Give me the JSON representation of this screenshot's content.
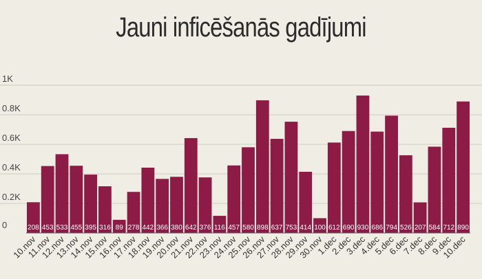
{
  "chart_data": {
    "type": "bar",
    "title": "Jauni inficēšanās gadījumi",
    "categories": [
      "10.nov",
      "11.nov",
      "12.nov",
      "13.nov",
      "14.nov",
      "15.nov",
      "16.nov",
      "17.nov",
      "18.nov",
      "19.nov",
      "20.nov",
      "21.nov",
      "22.nov",
      "23.nov",
      "24.nov",
      "25.nov",
      "26.nov",
      "27.nov",
      "28.nov",
      "29.nov",
      "30.nov",
      "1.dec",
      "2.dec",
      "3.dec",
      "4.dec",
      "5.dec",
      "6.dec",
      "7.dec",
      "8.dec",
      "9.dec",
      "10.dec"
    ],
    "values": [
      208,
      453,
      533,
      455,
      395,
      316,
      89,
      278,
      442,
      366,
      380,
      642,
      376,
      116,
      457,
      580,
      898,
      637,
      753,
      414,
      100,
      612,
      690,
      930,
      686,
      794,
      526,
      207,
      584,
      712,
      890
    ],
    "yticks": [
      "0",
      "0.2K",
      "0.4K",
      "0.6K",
      "0.8K",
      "1K"
    ],
    "ylim": [
      0,
      1000
    ],
    "grid": true,
    "bar_color": "#8c1c45"
  }
}
